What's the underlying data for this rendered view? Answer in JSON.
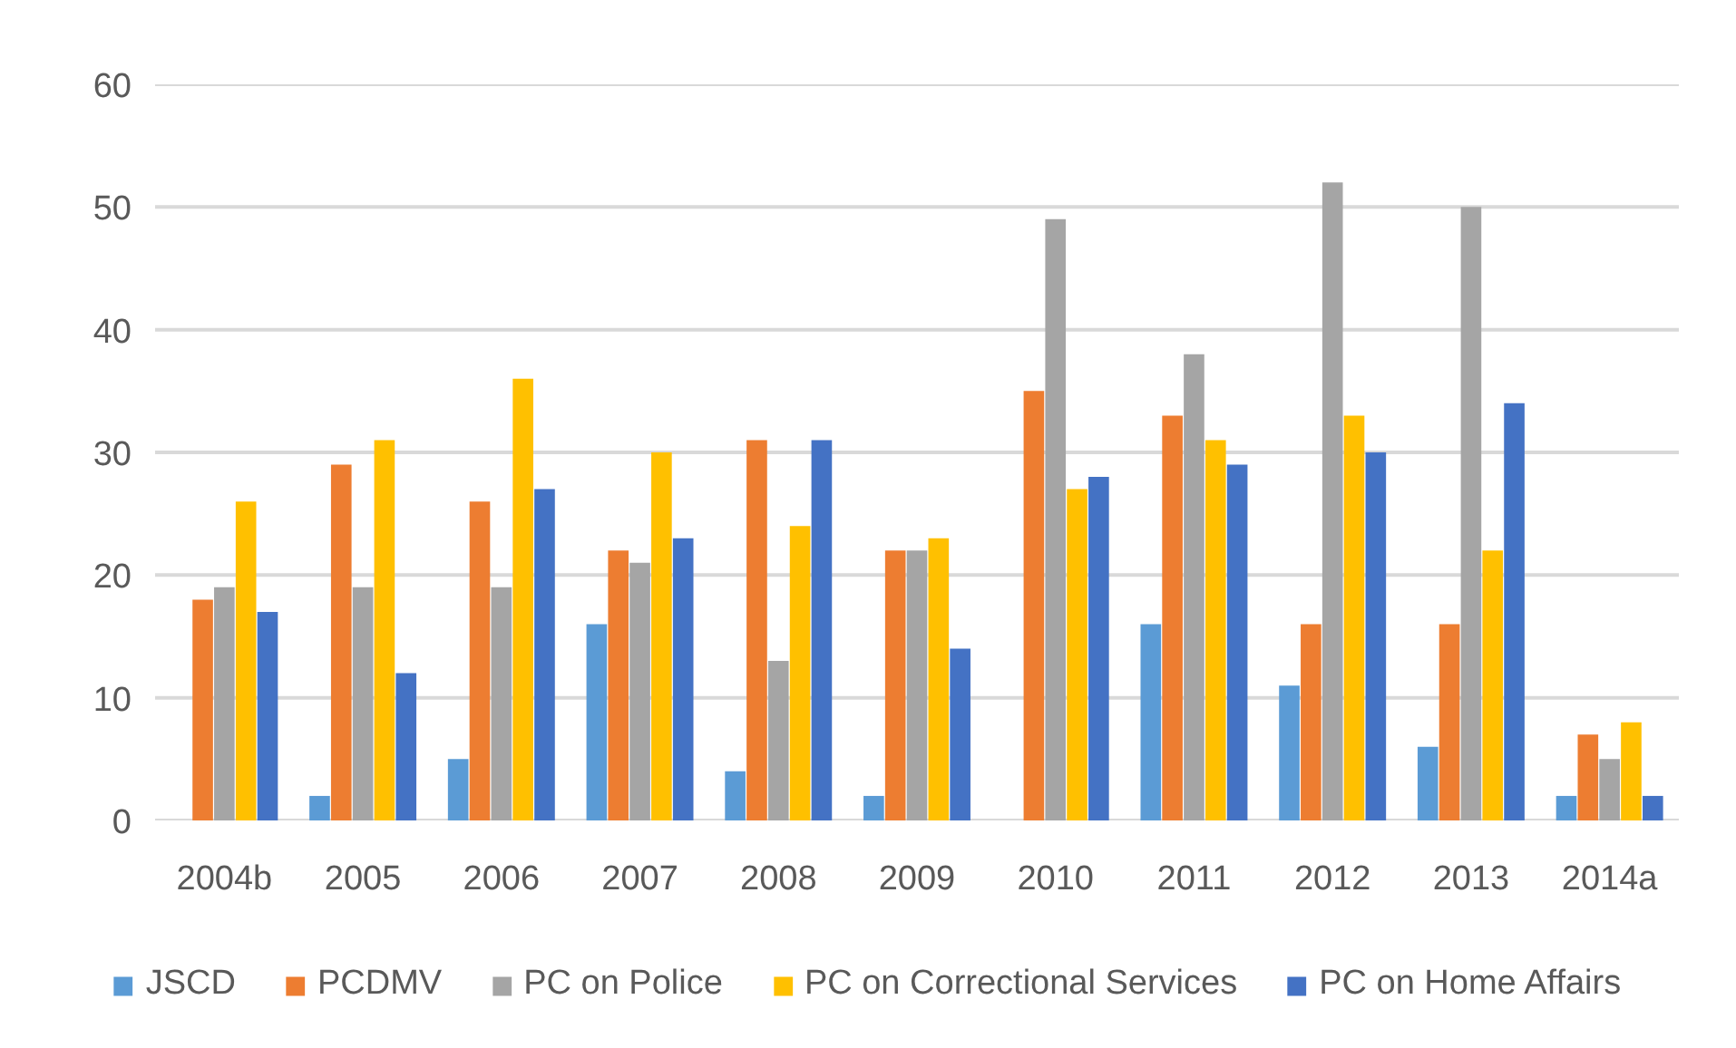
{
  "chart_data": {
    "type": "bar",
    "categories": [
      "2004b",
      "2005",
      "2006",
      "2007",
      "2008",
      "2009",
      "2010",
      "2011",
      "2012",
      "2013",
      "2014a"
    ],
    "series": [
      {
        "name": "JSCD",
        "color": "#5b9bd5",
        "values": [
          0,
          2,
          5,
          16,
          4,
          2,
          0,
          16,
          11,
          6,
          2
        ]
      },
      {
        "name": "PCDMV",
        "color": "#ed7d31",
        "values": [
          18,
          29,
          26,
          22,
          31,
          22,
          35,
          33,
          16,
          16,
          7
        ]
      },
      {
        "name": "PC on Police",
        "color": "#a5a5a5",
        "values": [
          19,
          19,
          19,
          21,
          13,
          22,
          49,
          38,
          52,
          50,
          5
        ]
      },
      {
        "name": "PC on Correctional Services",
        "color": "#ffc000",
        "values": [
          26,
          31,
          36,
          30,
          24,
          23,
          27,
          31,
          33,
          22,
          8
        ]
      },
      {
        "name": "PC on Home Affairs",
        "color": "#4472c4",
        "values": [
          17,
          12,
          27,
          23,
          31,
          14,
          28,
          29,
          30,
          34,
          2
        ]
      }
    ],
    "ylim": [
      0,
      60
    ],
    "yticks": [
      0,
      10,
      20,
      30,
      40,
      50,
      60
    ],
    "grid": "y",
    "legend": "bottom"
  }
}
